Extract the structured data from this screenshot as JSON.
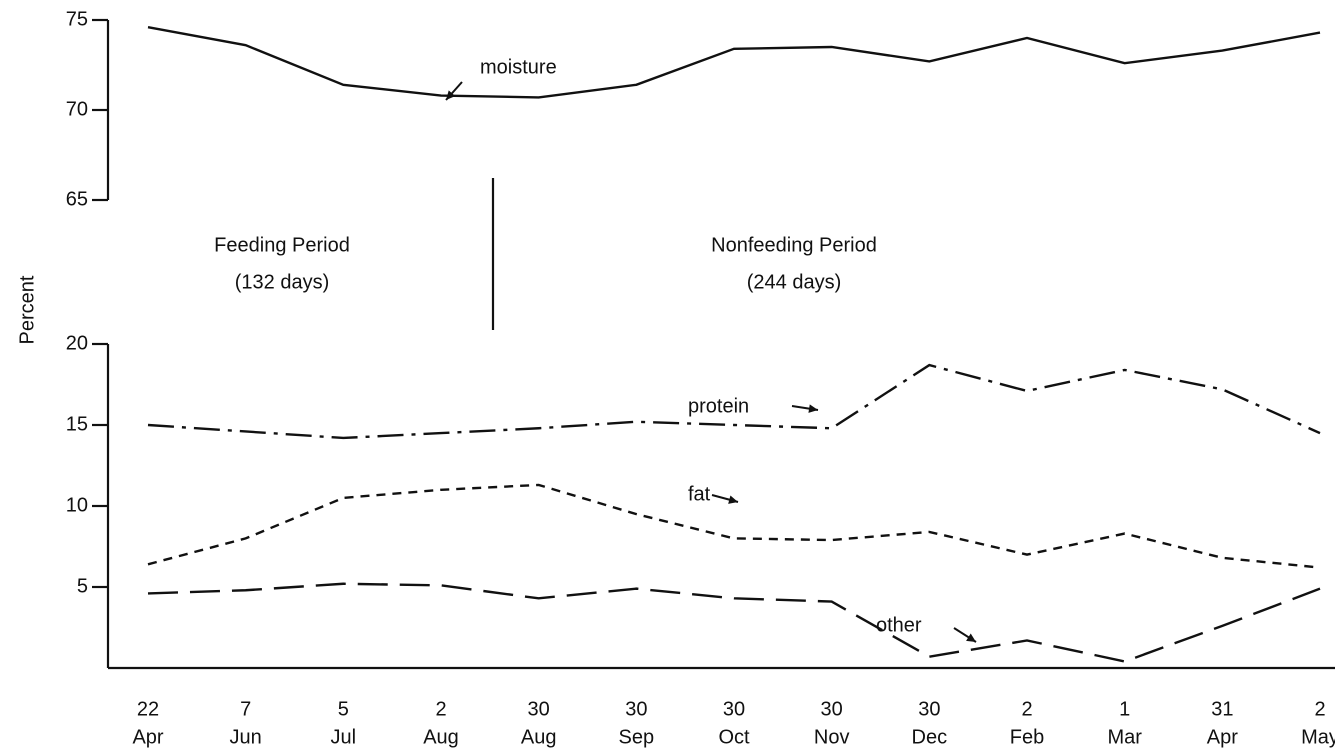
{
  "chart_data": {
    "type": "line",
    "y_label": "Percent",
    "categories": [
      [
        "22",
        "Apr"
      ],
      [
        "7",
        "Jun"
      ],
      [
        "5",
        "Jul"
      ],
      [
        "2",
        "Aug"
      ],
      [
        "30",
        "Aug"
      ],
      [
        "30",
        "Sep"
      ],
      [
        "30",
        "Oct"
      ],
      [
        "30",
        "Nov"
      ],
      [
        "30",
        "Dec"
      ],
      [
        "2",
        "Feb"
      ],
      [
        "1",
        "Mar"
      ],
      [
        "31",
        "Apr"
      ],
      [
        "2",
        "May"
      ]
    ],
    "annotations": [
      "Feeding Period",
      "(132 days)",
      "Nonfeeding Period",
      "(244 days)"
    ],
    "panels": [
      {
        "ylim": [
          65,
          75
        ],
        "yticks": [
          65,
          70,
          75
        ],
        "series": [
          {
            "name": "moisture",
            "color": "#111111",
            "style": "solid",
            "values": [
              74.6,
              73.6,
              71.4,
              70.8,
              70.7,
              71.4,
              73.4,
              73.5,
              72.7,
              74.0,
              72.6,
              73.3,
              74.3
            ]
          }
        ]
      },
      {
        "ylim": [
          0,
          20
        ],
        "yticks": [
          5,
          10,
          15,
          20
        ],
        "series": [
          {
            "name": "protein",
            "color": "#111111",
            "style": "dash-dot",
            "values": [
              15.0,
              14.6,
              14.2,
              14.5,
              14.8,
              15.2,
              15.0,
              14.8,
              18.7,
              17.1,
              18.4,
              17.2,
              14.5
            ]
          },
          {
            "name": "fat",
            "color": "#111111",
            "style": "short-dash",
            "values": [
              6.4,
              8.0,
              10.5,
              11.0,
              11.3,
              9.5,
              8.0,
              7.9,
              8.4,
              7.0,
              8.3,
              6.8,
              6.2
            ]
          },
          {
            "name": "other",
            "color": "#111111",
            "style": "long-dash",
            "values": [
              4.6,
              4.8,
              5.2,
              5.1,
              4.3,
              4.9,
              4.3,
              4.1,
              0.7,
              1.7,
              0.4,
              2.6,
              4.9
            ]
          }
        ]
      }
    ]
  }
}
